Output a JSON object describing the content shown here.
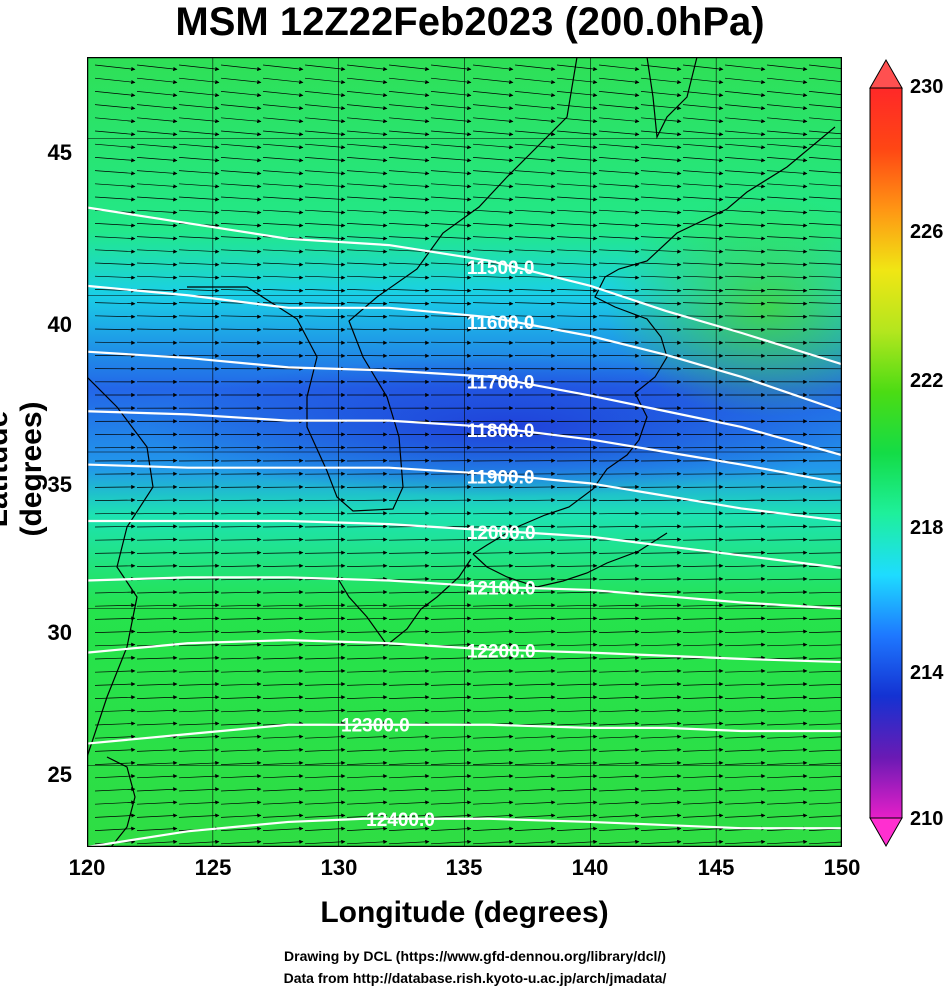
{
  "title": "MSM 12Z22Feb2023 (200.0hPa)",
  "axes": {
    "xlabel": "Longitude (degrees)",
    "ylabel": "Latitude  (degrees)",
    "x_ticks": [
      "120",
      "125",
      "130",
      "135",
      "140",
      "145",
      "150"
    ],
    "y_ticks": [
      "25",
      "30",
      "35",
      "40",
      "45"
    ],
    "xlim": [
      120,
      150
    ],
    "ylim": [
      22.4,
      47.6
    ]
  },
  "colorbar": {
    "labels": [
      "230",
      "226",
      "222",
      "218",
      "214",
      "210"
    ],
    "min": 210,
    "max": 230,
    "colors": [
      "#e61fc8",
      "#6a1ab4",
      "#1432d2",
      "#1e78ff",
      "#1edcff",
      "#1ef09b",
      "#14dc46",
      "#4bdc14",
      "#b4e61e",
      "#f0e614",
      "#ff9614",
      "#ff4614",
      "#ff2828"
    ]
  },
  "contours": [
    {
      "label": "11500.0",
      "label_lon": 137.0,
      "points": [
        [
          120,
          42.8
        ],
        [
          124,
          42.3
        ],
        [
          128,
          41.8
        ],
        [
          132,
          41.6
        ],
        [
          136,
          41.1
        ],
        [
          140,
          40.3
        ],
        [
          143,
          39.5
        ],
        [
          146,
          38.8
        ],
        [
          150,
          37.8
        ]
      ]
    },
    {
      "label": "11600.0",
      "label_lon": 137.0,
      "points": [
        [
          120,
          40.3
        ],
        [
          124,
          40.0
        ],
        [
          128,
          39.6
        ],
        [
          132,
          39.6
        ],
        [
          136,
          39.3
        ],
        [
          140,
          38.7
        ],
        [
          143,
          38.1
        ],
        [
          146,
          37.4
        ],
        [
          150,
          36.3
        ]
      ]
    },
    {
      "label": "11700.0",
      "label_lon": 137.0,
      "points": [
        [
          120,
          38.2
        ],
        [
          124,
          38.0
        ],
        [
          128,
          37.7
        ],
        [
          132,
          37.6
        ],
        [
          136,
          37.4
        ],
        [
          140,
          36.8
        ],
        [
          143,
          36.3
        ],
        [
          146,
          35.8
        ],
        [
          150,
          34.9
        ]
      ]
    },
    {
      "label": "11800.0",
      "label_lon": 137.0,
      "points": [
        [
          120,
          36.3
        ],
        [
          124,
          36.2
        ],
        [
          128,
          36.0
        ],
        [
          132,
          36.0
        ],
        [
          136,
          35.8
        ],
        [
          140,
          35.4
        ],
        [
          143,
          35.0
        ],
        [
          146,
          34.6
        ],
        [
          150,
          34.0
        ]
      ]
    },
    {
      "label": "11900.0",
      "label_lon": 137.0,
      "points": [
        [
          120,
          34.6
        ],
        [
          124,
          34.5
        ],
        [
          128,
          34.5
        ],
        [
          132,
          34.5
        ],
        [
          136,
          34.3
        ],
        [
          140,
          34.0
        ],
        [
          143,
          33.6
        ],
        [
          146,
          33.2
        ],
        [
          150,
          32.8
        ]
      ]
    },
    {
      "label": "12000.0",
      "label_lon": 137.0,
      "points": [
        [
          120,
          32.8
        ],
        [
          124,
          32.8
        ],
        [
          128,
          32.8
        ],
        [
          132,
          32.7
        ],
        [
          136,
          32.5
        ],
        [
          140,
          32.3
        ],
        [
          143,
          32.0
        ],
        [
          146,
          31.7
        ],
        [
          150,
          31.3
        ]
      ]
    },
    {
      "label": "12100.0",
      "label_lon": 137.0,
      "points": [
        [
          120,
          30.9
        ],
        [
          124,
          31.0
        ],
        [
          128,
          31.0
        ],
        [
          132,
          30.9
        ],
        [
          136,
          30.7
        ],
        [
          140,
          30.6
        ],
        [
          143,
          30.4
        ],
        [
          146,
          30.2
        ],
        [
          150,
          30.0
        ]
      ]
    },
    {
      "label": "12200.0",
      "label_lon": 137.0,
      "points": [
        [
          120,
          28.6
        ],
        [
          124,
          28.9
        ],
        [
          128,
          29.0
        ],
        [
          132,
          28.9
        ],
        [
          136,
          28.7
        ],
        [
          140,
          28.6
        ],
        [
          143,
          28.5
        ],
        [
          146,
          28.4
        ],
        [
          150,
          28.3
        ]
      ]
    },
    {
      "label": "12300.0",
      "label_lon": 132.0,
      "points": [
        [
          120,
          25.7
        ],
        [
          124,
          26.0
        ],
        [
          128,
          26.3
        ],
        [
          132,
          26.3
        ],
        [
          136,
          26.3
        ],
        [
          140,
          26.2
        ],
        [
          143,
          26.2
        ],
        [
          146,
          26.1
        ],
        [
          150,
          26.1
        ]
      ]
    },
    {
      "label": "12400.0",
      "label_lon": 133.0,
      "points": [
        [
          120,
          22.4
        ],
        [
          124,
          22.9
        ],
        [
          128,
          23.2
        ],
        [
          131,
          23.3
        ],
        [
          136,
          23.3
        ],
        [
          140,
          23.2
        ],
        [
          143,
          23.1
        ],
        [
          146,
          23.0
        ],
        [
          150,
          23.0
        ]
      ]
    }
  ],
  "credits": [
    "Drawing by DCL (https://www.gfd-dennou.org/library/dcl/)",
    "Data from http://database.rish.kyoto-u.ac.jp/arch/jmadata/"
  ]
}
